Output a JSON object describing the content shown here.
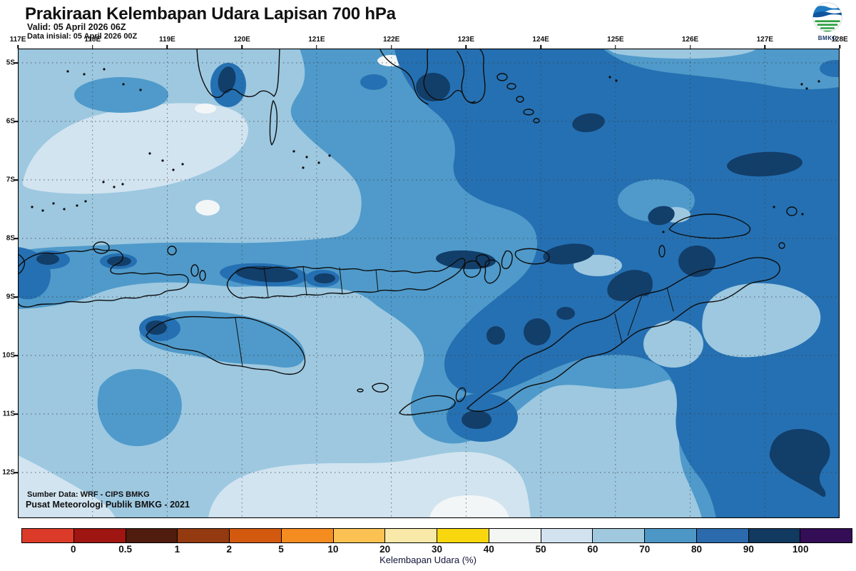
{
  "header": {
    "title": "Prakiraan Kelembapan Udara Lapisan 700 hPa",
    "valid": "Valid: 05 April 2026 06Z",
    "data_initial": "Data inisial: 05 April 2026 00Z",
    "logo_text": "BMKG"
  },
  "map": {
    "lon_labels": [
      "117E",
      "118E",
      "119E",
      "120E",
      "121E",
      "122E",
      "123E",
      "124E",
      "125E",
      "126E",
      "127E",
      "128E"
    ],
    "lat_labels": [
      "5S",
      "6S",
      "7S",
      "8S",
      "9S",
      "10S",
      "11S",
      "12S"
    ],
    "source_line1": "Sumber Data: WRF - CIPS BMKG",
    "source_line2": "Pusat Meteorologi Publik BMKG - 2021"
  },
  "legend": {
    "caption": "Kelembapan Udara (%)",
    "tick_labels": [
      "0",
      "0.5",
      "1",
      "2",
      "5",
      "10",
      "20",
      "30",
      "40",
      "50",
      "60",
      "70",
      "80",
      "90",
      "100"
    ],
    "colors": [
      "#dd3b2a",
      "#9e1511",
      "#4f1c0d",
      "#933a10",
      "#d3590e",
      "#f48c20",
      "#fbc253",
      "#f8e9a9",
      "#f8d70e",
      "#f4f6f3",
      "#d2e3ef",
      "#a0c9e0",
      "#4d97c7",
      "#2a6aad",
      "#12395f",
      "#330d56"
    ]
  },
  "map_palette": {
    "rh_40_50": "#f3f6f7",
    "rh_50_60": "#d2e4f0",
    "rh_60_70": "#9dc8e0",
    "rh_70_80": "#4f9aca",
    "rh_80_90": "#2570b2",
    "rh_90_100": "#123e6a"
  }
}
